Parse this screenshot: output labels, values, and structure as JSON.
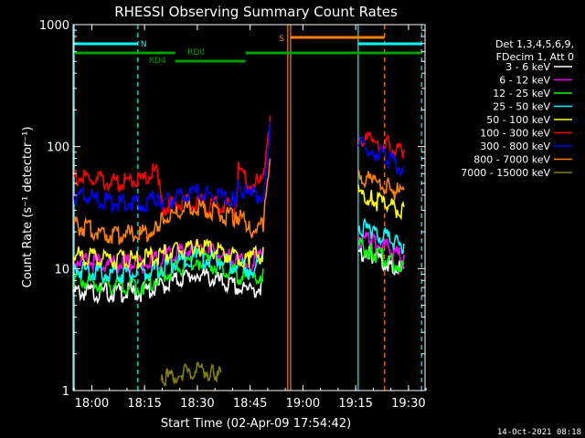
{
  "chart_data": {
    "type": "line",
    "title": "RHESSI Observing Summary Count Rates",
    "xlabel": "Start Time (02-Apr-09 17:54:42)",
    "ylabel": "Count Rate (s⁻¹ detector⁻¹)",
    "yscale": "log",
    "ylim": [
      1,
      1000
    ],
    "xlim_minutes_after_1754": [
      0,
      100
    ],
    "x_ticks": [
      {
        "label": "18:00",
        "minutes": 5.3
      },
      {
        "label": "18:15",
        "minutes": 20.3
      },
      {
        "label": "18:30",
        "minutes": 35.3
      },
      {
        "label": "18:45",
        "minutes": 50.3
      },
      {
        "label": "19:00",
        "minutes": 65.3
      },
      {
        "label": "19:15",
        "minutes": 80.3
      },
      {
        "label": "19:30",
        "minutes": 95.3
      }
    ],
    "y_ticks": [
      {
        "label": "1",
        "value": 1
      },
      {
        "label": "10",
        "value": 10
      },
      {
        "label": "100",
        "value": 100
      },
      {
        "label": "1000",
        "value": 1000
      }
    ],
    "legend_header": [
      "Det 1,3,4,5,6,9,",
      "FDecim 1, Att 0"
    ],
    "legend_position": "right",
    "series": [
      {
        "name": "3 - 6 keV",
        "color": "#ffffff",
        "segments": [
          [
            [
              0,
              7
            ],
            [
              10,
              7
            ],
            [
              20,
              7
            ],
            [
              35,
              10
            ],
            [
              50,
              7
            ],
            [
              54,
              8
            ]
          ],
          [
            [
              81,
              15
            ],
            [
              85,
              14
            ],
            [
              90,
              12
            ],
            [
              94,
              10
            ]
          ]
        ]
      },
      {
        "name": "6 - 12 keV",
        "color": "#ff00ff",
        "segments": [
          [
            [
              0,
              13
            ],
            [
              10,
              12
            ],
            [
              20,
              12
            ],
            [
              35,
              16
            ],
            [
              50,
              12
            ],
            [
              54,
              14
            ]
          ],
          [
            [
              81,
              20
            ],
            [
              85,
              18
            ],
            [
              90,
              16
            ],
            [
              94,
              13
            ]
          ]
        ]
      },
      {
        "name": "12 - 25 keV",
        "color": "#00ff00",
        "segments": [
          [
            [
              0,
              9
            ],
            [
              10,
              8
            ],
            [
              20,
              8
            ],
            [
              35,
              13
            ],
            [
              50,
              9
            ],
            [
              54,
              10
            ]
          ],
          [
            [
              81,
              17
            ],
            [
              85,
              15
            ],
            [
              90,
              13
            ],
            [
              94,
              11
            ]
          ]
        ]
      },
      {
        "name": "25 - 50 keV",
        "color": "#00ffff",
        "segments": [
          [
            [
              0,
              11
            ],
            [
              10,
              10
            ],
            [
              20,
              10
            ],
            [
              35,
              14
            ],
            [
              50,
              11
            ],
            [
              54,
              12
            ]
          ],
          [
            [
              81,
              25
            ],
            [
              85,
              22
            ],
            [
              90,
              19
            ],
            [
              94,
              16
            ]
          ]
        ]
      },
      {
        "name": "50 - 100 keV",
        "color": "#ffff00",
        "segments": [
          [
            [
              0,
              14
            ],
            [
              10,
              13
            ],
            [
              20,
              13
            ],
            [
              35,
              17
            ],
            [
              50,
              13
            ],
            [
              54,
              15
            ]
          ],
          [
            [
              81,
              45
            ],
            [
              85,
              40
            ],
            [
              90,
              36
            ],
            [
              94,
              32
            ]
          ]
        ]
      },
      {
        "name": "100 - 300 keV",
        "color": "#ff0000",
        "segments": [
          [
            [
              0,
              62
            ],
            [
              10,
              55
            ],
            [
              20,
              60
            ],
            [
              24,
              70
            ],
            [
              25,
              35
            ],
            [
              35,
              38
            ],
            [
              46,
              35
            ],
            [
              47,
              70
            ],
            [
              50,
              55
            ],
            [
              54,
              55
            ],
            [
              56,
              180
            ]
          ],
          [
            [
              81,
              130
            ],
            [
              85,
              120
            ],
            [
              90,
              110
            ],
            [
              94,
              95
            ]
          ]
        ]
      },
      {
        "name": "300 - 800 keV",
        "color": "#0000ff",
        "segments": [
          [
            [
              0,
              45
            ],
            [
              10,
              38
            ],
            [
              20,
              38
            ],
            [
              24,
              42
            ],
            [
              25,
              38
            ],
            [
              35,
              46
            ],
            [
              46,
              40
            ],
            [
              47,
              55
            ],
            [
              50,
              42
            ],
            [
              54,
              45
            ],
            [
              56,
              160
            ]
          ],
          [
            [
              81,
              115
            ],
            [
              85,
              100
            ],
            [
              90,
              85
            ],
            [
              94,
              70
            ]
          ]
        ]
      },
      {
        "name": "800 - 7000 keV",
        "color": "#ff8000",
        "segments": [
          [
            [
              0,
              25
            ],
            [
              10,
              21
            ],
            [
              20,
              21
            ],
            [
              24,
              24
            ],
            [
              25,
              28
            ],
            [
              35,
              36
            ],
            [
              46,
              28
            ],
            [
              47,
              30
            ],
            [
              50,
              23
            ],
            [
              54,
              25
            ],
            [
              56,
              80
            ]
          ],
          [
            [
              81,
              65
            ],
            [
              85,
              58
            ],
            [
              90,
              50
            ],
            [
              94,
              44
            ]
          ]
        ]
      },
      {
        "name": "7000 - 15000 keV",
        "color": "#808000",
        "segments": [
          [
            [
              25,
              1.5
            ],
            [
              27,
              1.4
            ],
            [
              30,
              1.5
            ],
            [
              36,
              1.6
            ],
            [
              40,
              1.5
            ],
            [
              42,
              1.4
            ]
          ]
        ]
      }
    ],
    "annotations": [
      {
        "label": "N",
        "color": "#00ffff"
      },
      {
        "label": "RD0",
        "color": "#00a000"
      },
      {
        "label": "RD4",
        "color": "#00a000"
      },
      {
        "label": "S",
        "color": "#ff8000"
      }
    ],
    "footer_date": "14-Oct-2021 08:18"
  }
}
